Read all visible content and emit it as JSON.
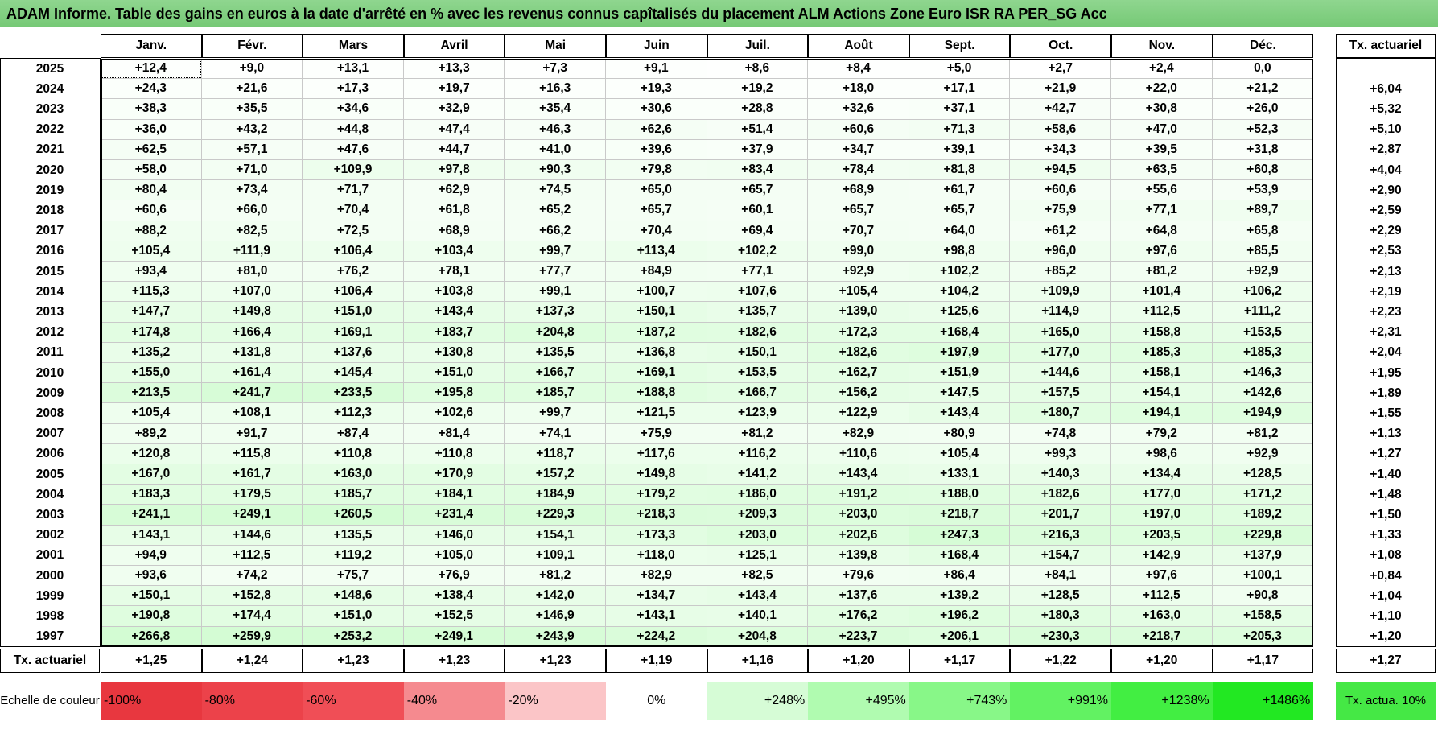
{
  "title": "ADAM Informe. Table des gains en euros à la date d'arrêté en % avec les revenus connus capîtalisés du placement ALM Actions Zone Euro ISR RA PER_SG Acc",
  "table": {
    "header": [
      "Janv.",
      "Févr.",
      "Mars",
      "Avril",
      "Mai",
      "Juin",
      "Juil.",
      "Août",
      "Sept.",
      "Oct.",
      "Nov.",
      "Déc."
    ],
    "tx_header": "Tx. actuariel",
    "rows": [
      {
        "year": "2025",
        "values": [
          "+12,4",
          "+9,0",
          "+13,1",
          "+13,3",
          "+7,3",
          "+9,1",
          "+8,6",
          "+8,4",
          "+5,0",
          "+2,7",
          "+2,4",
          "0,0"
        ],
        "tx": null
      },
      {
        "year": "2024",
        "values": [
          "+24,3",
          "+21,6",
          "+17,3",
          "+19,7",
          "+16,3",
          "+19,3",
          "+19,2",
          "+18,0",
          "+17,1",
          "+21,9",
          "+22,0",
          "+21,2"
        ],
        "tx": "+6,04"
      },
      {
        "year": "2023",
        "values": [
          "+38,3",
          "+35,5",
          "+34,6",
          "+32,9",
          "+35,4",
          "+30,6",
          "+28,8",
          "+32,6",
          "+37,1",
          "+42,7",
          "+30,8",
          "+26,0"
        ],
        "tx": "+5,32"
      },
      {
        "year": "2022",
        "values": [
          "+36,0",
          "+43,2",
          "+44,8",
          "+47,4",
          "+46,3",
          "+62,6",
          "+51,4",
          "+60,6",
          "+71,3",
          "+58,6",
          "+47,0",
          "+52,3"
        ],
        "tx": "+5,10"
      },
      {
        "year": "2021",
        "values": [
          "+62,5",
          "+57,1",
          "+47,6",
          "+44,7",
          "+41,0",
          "+39,6",
          "+37,9",
          "+34,7",
          "+39,1",
          "+34,3",
          "+39,5",
          "+31,8"
        ],
        "tx": "+2,87"
      },
      {
        "year": "2020",
        "values": [
          "+58,0",
          "+71,0",
          "+109,9",
          "+97,8",
          "+90,3",
          "+79,8",
          "+83,4",
          "+78,4",
          "+81,8",
          "+94,5",
          "+63,5",
          "+60,8"
        ],
        "tx": "+4,04"
      },
      {
        "year": "2019",
        "values": [
          "+80,4",
          "+73,4",
          "+71,7",
          "+62,9",
          "+74,5",
          "+65,0",
          "+65,7",
          "+68,9",
          "+61,7",
          "+60,6",
          "+55,6",
          "+53,9"
        ],
        "tx": "+2,90"
      },
      {
        "year": "2018",
        "values": [
          "+60,6",
          "+66,0",
          "+70,4",
          "+61,8",
          "+65,2",
          "+65,7",
          "+60,1",
          "+65,7",
          "+65,7",
          "+75,9",
          "+77,1",
          "+89,7"
        ],
        "tx": "+2,59"
      },
      {
        "year": "2017",
        "values": [
          "+88,2",
          "+82,5",
          "+72,5",
          "+68,9",
          "+66,2",
          "+70,4",
          "+69,4",
          "+70,7",
          "+64,0",
          "+61,2",
          "+64,8",
          "+65,8"
        ],
        "tx": "+2,29"
      },
      {
        "year": "2016",
        "values": [
          "+105,4",
          "+111,9",
          "+106,4",
          "+103,4",
          "+99,7",
          "+113,4",
          "+102,2",
          "+99,0",
          "+98,8",
          "+96,0",
          "+97,6",
          "+85,5"
        ],
        "tx": "+2,53"
      },
      {
        "year": "2015",
        "values": [
          "+93,4",
          "+81,0",
          "+76,2",
          "+78,1",
          "+77,7",
          "+84,9",
          "+77,1",
          "+92,9",
          "+102,2",
          "+85,2",
          "+81,2",
          "+92,9"
        ],
        "tx": "+2,13"
      },
      {
        "year": "2014",
        "values": [
          "+115,3",
          "+107,0",
          "+106,4",
          "+103,8",
          "+99,1",
          "+100,7",
          "+107,6",
          "+105,4",
          "+104,2",
          "+109,9",
          "+101,4",
          "+106,2"
        ],
        "tx": "+2,19"
      },
      {
        "year": "2013",
        "values": [
          "+147,7",
          "+149,8",
          "+151,0",
          "+143,4",
          "+137,3",
          "+150,1",
          "+135,7",
          "+139,0",
          "+125,6",
          "+114,9",
          "+112,5",
          "+111,2"
        ],
        "tx": "+2,23"
      },
      {
        "year": "2012",
        "values": [
          "+174,8",
          "+166,4",
          "+169,1",
          "+183,7",
          "+204,8",
          "+187,2",
          "+182,6",
          "+172,3",
          "+168,4",
          "+165,0",
          "+158,8",
          "+153,5"
        ],
        "tx": "+2,31"
      },
      {
        "year": "2011",
        "values": [
          "+135,2",
          "+131,8",
          "+137,6",
          "+130,8",
          "+135,5",
          "+136,8",
          "+150,1",
          "+182,6",
          "+197,9",
          "+177,0",
          "+185,3",
          "+185,3"
        ],
        "tx": "+2,04"
      },
      {
        "year": "2010",
        "values": [
          "+155,0",
          "+161,4",
          "+145,4",
          "+151,0",
          "+166,7",
          "+169,1",
          "+153,5",
          "+162,7",
          "+151,9",
          "+144,6",
          "+158,1",
          "+146,3"
        ],
        "tx": "+1,95"
      },
      {
        "year": "2009",
        "values": [
          "+213,5",
          "+241,7",
          "+233,5",
          "+195,8",
          "+185,7",
          "+188,8",
          "+166,7",
          "+156,2",
          "+147,5",
          "+157,5",
          "+154,1",
          "+142,6"
        ],
        "tx": "+1,89"
      },
      {
        "year": "2008",
        "values": [
          "+105,4",
          "+108,1",
          "+112,3",
          "+102,6",
          "+99,7",
          "+121,5",
          "+123,9",
          "+122,9",
          "+143,4",
          "+180,7",
          "+194,1",
          "+194,9"
        ],
        "tx": "+1,55"
      },
      {
        "year": "2007",
        "values": [
          "+89,2",
          "+91,7",
          "+87,4",
          "+81,4",
          "+74,1",
          "+75,9",
          "+81,2",
          "+82,9",
          "+80,9",
          "+74,8",
          "+79,2",
          "+81,2"
        ],
        "tx": "+1,13"
      },
      {
        "year": "2006",
        "values": [
          "+120,8",
          "+115,8",
          "+110,8",
          "+110,8",
          "+118,7",
          "+117,6",
          "+116,2",
          "+110,6",
          "+105,4",
          "+99,3",
          "+98,6",
          "+92,9"
        ],
        "tx": "+1,27"
      },
      {
        "year": "2005",
        "values": [
          "+167,0",
          "+161,7",
          "+163,0",
          "+170,9",
          "+157,2",
          "+149,8",
          "+141,2",
          "+143,4",
          "+133,1",
          "+140,3",
          "+134,4",
          "+128,5"
        ],
        "tx": "+1,40"
      },
      {
        "year": "2004",
        "values": [
          "+183,3",
          "+179,5",
          "+185,7",
          "+184,1",
          "+184,9",
          "+179,2",
          "+186,0",
          "+191,2",
          "+188,0",
          "+182,6",
          "+177,0",
          "+171,2"
        ],
        "tx": "+1,48"
      },
      {
        "year": "2003",
        "values": [
          "+241,1",
          "+249,1",
          "+260,5",
          "+231,4",
          "+229,3",
          "+218,3",
          "+209,3",
          "+203,0",
          "+218,7",
          "+201,7",
          "+197,0",
          "+189,2"
        ],
        "tx": "+1,50"
      },
      {
        "year": "2002",
        "values": [
          "+143,1",
          "+144,6",
          "+135,5",
          "+146,0",
          "+154,1",
          "+173,3",
          "+203,0",
          "+202,6",
          "+247,3",
          "+216,3",
          "+203,5",
          "+229,8"
        ],
        "tx": "+1,33"
      },
      {
        "year": "2001",
        "values": [
          "+94,9",
          "+112,5",
          "+119,2",
          "+105,0",
          "+109,1",
          "+118,0",
          "+125,1",
          "+139,8",
          "+168,4",
          "+154,7",
          "+142,9",
          "+137,9"
        ],
        "tx": "+1,08"
      },
      {
        "year": "2000",
        "values": [
          "+93,6",
          "+74,2",
          "+75,7",
          "+76,9",
          "+81,2",
          "+82,9",
          "+82,5",
          "+79,6",
          "+86,4",
          "+84,1",
          "+97,6",
          "+100,1"
        ],
        "tx": "+0,84"
      },
      {
        "year": "1999",
        "values": [
          "+150,1",
          "+152,8",
          "+148,6",
          "+138,4",
          "+142,0",
          "+134,7",
          "+143,4",
          "+137,6",
          "+139,2",
          "+128,5",
          "+112,5",
          "+90,8"
        ],
        "tx": "+1,04"
      },
      {
        "year": "1998",
        "values": [
          "+190,8",
          "+174,4",
          "+151,0",
          "+152,5",
          "+146,9",
          "+143,1",
          "+140,1",
          "+176,2",
          "+196,2",
          "+180,3",
          "+163,0",
          "+158,5"
        ],
        "tx": "+1,10"
      },
      {
        "year": "1997",
        "values": [
          "+266,8",
          "+259,9",
          "+253,2",
          "+249,1",
          "+243,9",
          "+224,2",
          "+204,8",
          "+223,7",
          "+206,1",
          "+230,3",
          "+218,7",
          "+205,3"
        ],
        "tx": "+1,20"
      }
    ],
    "footer": {
      "label": "Tx. actuariel",
      "values": [
        "+1,25",
        "+1,24",
        "+1,23",
        "+1,23",
        "+1,23",
        "+1,19",
        "+1,16",
        "+1,20",
        "+1,17",
        "+1,22",
        "+1,20",
        "+1,17"
      ],
      "tx": "+1,27"
    }
  },
  "legend": {
    "label": "Echelle de couleur",
    "stops": [
      {
        "label": "-100%",
        "color": "#e8373f"
      },
      {
        "label": "-80%",
        "color": "#ec424a"
      },
      {
        "label": "-60%",
        "color": "#f04e56"
      },
      {
        "label": "-40%",
        "color": "#f58a8f"
      },
      {
        "label": "-20%",
        "color": "#fbc5c7"
      },
      {
        "label": "0%",
        "color": "#ffffff"
      },
      {
        "label": "+248%",
        "color": "#d6fcd6"
      },
      {
        "label": "+495%",
        "color": "#b0fbb0"
      },
      {
        "label": "+743%",
        "color": "#88f788"
      },
      {
        "label": "+991%",
        "color": "#62f262"
      },
      {
        "label": "+1238%",
        "color": "#42ee42"
      },
      {
        "label": "+1486%",
        "color": "#22e822"
      }
    ],
    "tx_box": {
      "label": "Tx. actua. 10%",
      "color": "#45e845"
    }
  }
}
